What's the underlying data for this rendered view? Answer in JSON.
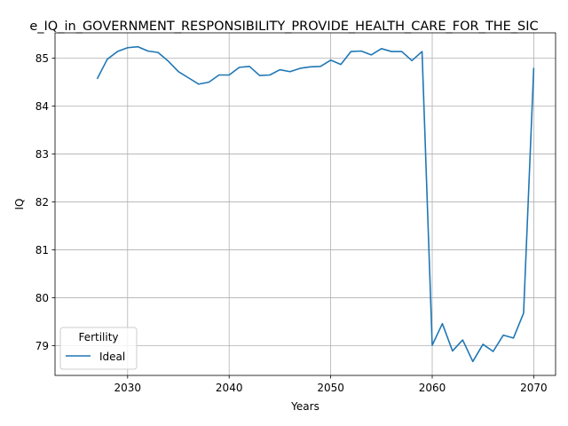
{
  "chart_data": {
    "type": "line",
    "title": "e_IQ_in_GOVERNMENT_RESPONSIBILITY_PROVIDE_HEALTH_CARE_FOR_THE_SIC",
    "xlabel": "Years",
    "ylabel": "IQ",
    "xlim": [
      2022.85,
      2072.15
    ],
    "ylim": [
      78.38,
      85.53
    ],
    "xticks": [
      2030,
      2040,
      2050,
      2060,
      2070
    ],
    "yticks": [
      79,
      80,
      81,
      82,
      83,
      84,
      85
    ],
    "grid": true,
    "legend": {
      "title": "Fertility",
      "placement": "lower-left"
    },
    "series": [
      {
        "name": "Ideal",
        "color": "#1f77b4",
        "x": [
          2027,
          2028,
          2029,
          2030,
          2031,
          2032,
          2033,
          2034,
          2035,
          2036,
          2037,
          2038,
          2039,
          2040,
          2041,
          2042,
          2043,
          2044,
          2045,
          2046,
          2047,
          2048,
          2049,
          2050,
          2051,
          2052,
          2053,
          2054,
          2055,
          2056,
          2057,
          2058,
          2059,
          2060,
          2061,
          2062,
          2063,
          2064,
          2065,
          2066,
          2067,
          2068,
          2069,
          2070
        ],
        "y": [
          84.57,
          84.98,
          85.14,
          85.22,
          85.24,
          85.15,
          85.12,
          84.94,
          84.72,
          84.59,
          84.46,
          84.5,
          84.65,
          84.65,
          84.81,
          84.83,
          84.64,
          84.65,
          84.76,
          84.72,
          84.79,
          84.82,
          84.83,
          84.96,
          84.87,
          85.14,
          85.15,
          85.07,
          85.2,
          85.14,
          85.14,
          84.95,
          85.14,
          79.01,
          79.46,
          78.89,
          79.12,
          78.67,
          79.03,
          78.88,
          79.22,
          79.16,
          79.68,
          84.8
        ]
      }
    ]
  }
}
